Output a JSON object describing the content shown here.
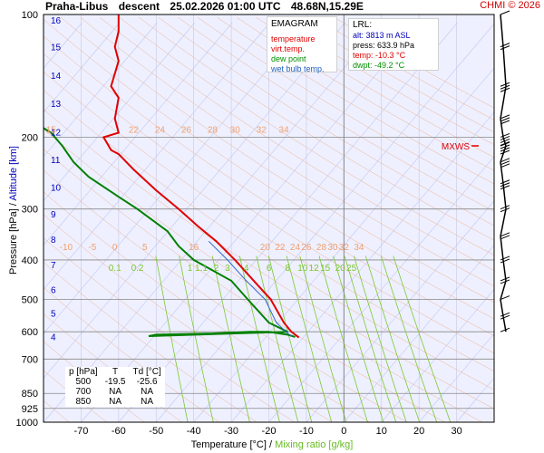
{
  "header": {
    "station": "Praha-Libus",
    "mode": "descent",
    "datetime": "25.02.2026 01:00 UTC",
    "coords": "48.68N,15.29E",
    "credit": "CHMI © 2026"
  },
  "legend": {
    "title": "EMAGRAM",
    "items": [
      {
        "label": "temperature",
        "color": "#e00000"
      },
      {
        "label": "virt.temp.",
        "color": "#e00000"
      },
      {
        "label": "dew point",
        "color": "#009000"
      },
      {
        "label": "wet bulb temp.",
        "color": "#2060c0"
      }
    ]
  },
  "lrl": {
    "title": "LRL:",
    "alt": "alt: 3813 m ASL",
    "press": "press: 633.9 hPa",
    "temp": "temp: -10.3 °C",
    "dwpt": "dwpt: -49.2 °C"
  },
  "obs_table": {
    "headers": [
      "p [hPa]",
      "T",
      "Td [°C]"
    ],
    "rows": [
      [
        "500",
        "-19.5",
        "-25.6"
      ],
      [
        "700",
        "NA",
        "NA"
      ],
      [
        "850",
        "NA",
        "NA"
      ]
    ]
  },
  "axis": {
    "ylabel_pressure": "Pressure [hPa]",
    "ylabel_sep": "/",
    "ylabel_altitude": "Altitude [km]",
    "xlabel_temp": "Temperature [°C]",
    "xlabel_sep": "/",
    "xlabel_mix": "Mixing ratio [g/kg]",
    "pressure_ticks": [
      100,
      200,
      300,
      400,
      500,
      600,
      700,
      850,
      925,
      1000
    ],
    "temperature_ticks": [
      -70,
      -60,
      -50,
      -40,
      -30,
      -20,
      -10,
      0,
      10,
      20,
      30
    ],
    "altitude_ticks": [
      {
        "km": 4,
        "p": 616
      },
      {
        "km": 5,
        "p": 540
      },
      {
        "km": 6,
        "p": 472
      },
      {
        "km": 7,
        "p": 410
      },
      {
        "km": 8,
        "p": 356
      },
      {
        "km": 9,
        "p": 308
      },
      {
        "km": 10,
        "p": 265
      },
      {
        "km": 11,
        "p": 227
      },
      {
        "km": 12,
        "p": 194
      },
      {
        "km": 13,
        "p": 165
      },
      {
        "km": 14,
        "p": 141
      },
      {
        "km": 15,
        "p": 120
      },
      {
        "km": 16,
        "p": 103
      }
    ],
    "xlim": [
      -80,
      40
    ],
    "ylim": [
      1000,
      100
    ],
    "log_pressure": true
  },
  "theta_labels_top": [
    "15",
    "22",
    "24",
    "26",
    "28",
    "30",
    "32",
    "34"
  ],
  "theta_labels_mid": [
    "-10",
    "-5",
    "0",
    "5",
    "16",
    "20",
    "22",
    "24",
    "26",
    "28",
    "30",
    "32",
    "34"
  ],
  "mixing_ratio_labels": [
    "0.1",
    "0.2",
    "1",
    "1.1",
    "2",
    "3",
    "4",
    "6",
    "8",
    "10",
    "12",
    "15",
    "20",
    "25"
  ],
  "mxws_label": "MXWS",
  "colors": {
    "temperature": "#e00000",
    "dewpoint": "#008000",
    "wetbulb": "#3366cc",
    "isobar": "#888888",
    "isotherm": "#c8c8e0",
    "dry_adiabat": "#f0b090",
    "mixing_ratio": "#7cc832",
    "plot_bg": "#eef0ff",
    "altitude": "#0000bb",
    "mxws": "#e00000"
  },
  "chart_data": {
    "type": "line",
    "x_unit": "°C",
    "y_unit": "hPa",
    "series": [
      {
        "name": "temperature",
        "points": [
          [
            -12,
            620
          ],
          [
            -14,
            600
          ],
          [
            -16,
            570
          ],
          [
            -19.5,
            500
          ],
          [
            -24,
            450
          ],
          [
            -29,
            400
          ],
          [
            -34,
            360
          ],
          [
            -39,
            330
          ],
          [
            -44,
            300
          ],
          [
            -50,
            270
          ],
          [
            -56,
            240
          ],
          [
            -60,
            220
          ],
          [
            -62,
            215
          ],
          [
            -64,
            200
          ],
          [
            -60,
            195
          ],
          [
            -61,
            180
          ],
          [
            -60,
            160
          ],
          [
            -62,
            150
          ],
          [
            -60,
            130
          ],
          [
            -61,
            120
          ],
          [
            -60,
            110
          ],
          [
            -60,
            100
          ]
        ]
      },
      {
        "name": "dew point",
        "points": [
          [
            -13,
            618
          ],
          [
            -15,
            610
          ],
          [
            -20,
            600
          ],
          [
            -25,
            600
          ],
          [
            -35,
            606
          ],
          [
            -50,
            610
          ],
          [
            -52,
            615
          ],
          [
            -15,
            600
          ],
          [
            -20,
            570
          ],
          [
            -25.6,
            500
          ],
          [
            -30,
            450
          ],
          [
            -40,
            400
          ],
          [
            -44,
            370
          ],
          [
            -47,
            340
          ],
          [
            -55,
            300
          ],
          [
            -60,
            280
          ],
          [
            -68,
            250
          ],
          [
            -72,
            230
          ],
          [
            -75,
            210
          ],
          [
            -78,
            195
          ],
          [
            -80,
            190
          ]
        ]
      },
      {
        "name": "wet bulb temp.",
        "points": [
          [
            -14,
            615
          ],
          [
            -15,
            605
          ],
          [
            -18,
            570
          ],
          [
            -21,
            500
          ],
          [
            -26,
            450
          ],
          [
            -31,
            400
          ],
          [
            -36,
            360
          ]
        ]
      }
    ],
    "wind_barbs": [
      {
        "p": 100,
        "speed": 10
      },
      {
        "p": 120,
        "speed": 15
      },
      {
        "p": 150,
        "speed": 25
      },
      {
        "p": 180,
        "speed": 30
      },
      {
        "p": 200,
        "speed": 40
      },
      {
        "p": 210,
        "speed": 35
      },
      {
        "p": 230,
        "speed": 30
      },
      {
        "p": 260,
        "speed": 25
      },
      {
        "p": 300,
        "speed": 20
      },
      {
        "p": 350,
        "speed": 15
      },
      {
        "p": 400,
        "speed": 15
      },
      {
        "p": 450,
        "speed": 15
      },
      {
        "p": 500,
        "speed": 10
      },
      {
        "p": 550,
        "speed": 15
      },
      {
        "p": 600,
        "speed": 10
      }
    ],
    "mxws_p": 210
  }
}
